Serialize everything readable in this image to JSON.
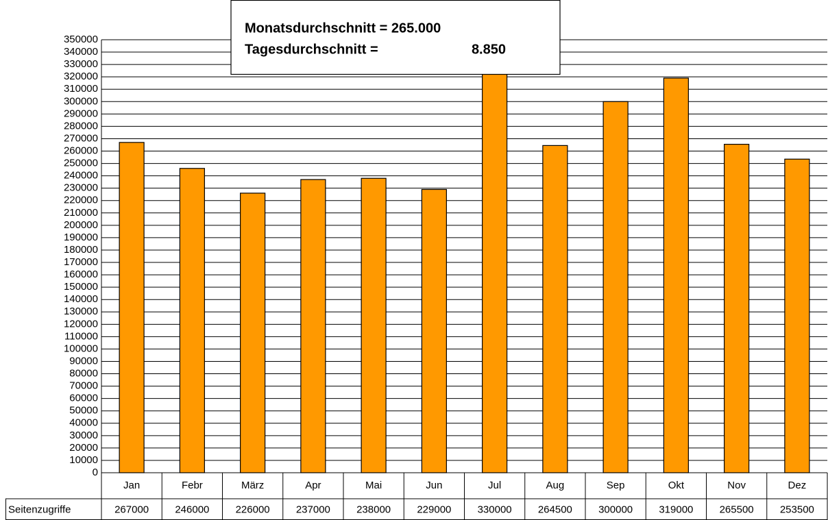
{
  "chart_data": {
    "type": "bar",
    "categories": [
      "Jan",
      "Febr",
      "März",
      "Apr",
      "Mai",
      "Jun",
      "Jul",
      "Aug",
      "Sep",
      "Okt",
      "Nov",
      "Dez"
    ],
    "series": [
      {
        "name": "Seitenzugriffe",
        "color": "#ff9900",
        "values": [
          267000,
          246000,
          226000,
          237000,
          238000,
          229000,
          330000,
          264500,
          300000,
          319000,
          265500,
          253500
        ]
      }
    ],
    "ylim": [
      0,
      350000
    ],
    "yticks": [
      0,
      10000,
      20000,
      30000,
      40000,
      50000,
      60000,
      70000,
      80000,
      90000,
      100000,
      110000,
      120000,
      130000,
      140000,
      150000,
      160000,
      170000,
      180000,
      190000,
      200000,
      210000,
      220000,
      230000,
      240000,
      250000,
      260000,
      270000,
      280000,
      290000,
      300000,
      310000,
      320000,
      330000,
      340000,
      350000
    ],
    "grid": true,
    "annotations": [
      "Monatsdurchschnitt = 265.000",
      "Tagesdurchschnitt =",
      "8.850"
    ]
  }
}
